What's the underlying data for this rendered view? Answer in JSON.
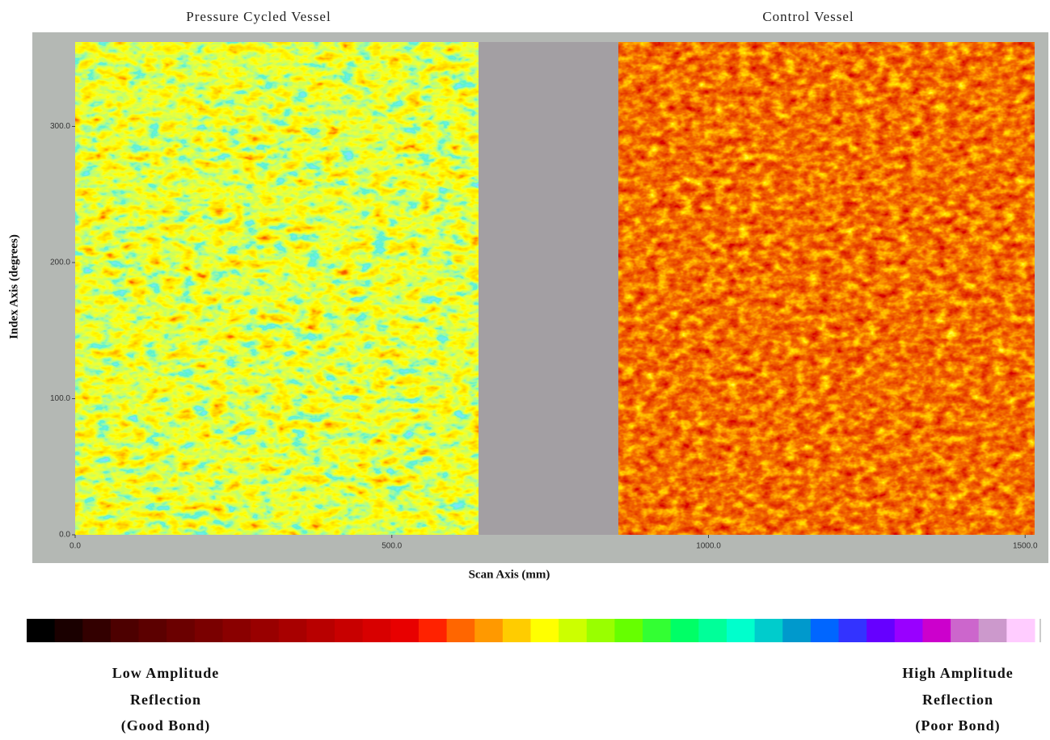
{
  "chart_data": {
    "type": "heatmap",
    "panels": [
      {
        "title": "Pressure Cycled Vessel"
      },
      {
        "title": "Control Vessel"
      }
    ],
    "x_label": "Scan Axis (mm)",
    "y_label": "Index Axis (degrees)",
    "xlim": [
      0,
      1515
    ],
    "ylim": [
      0,
      362
    ],
    "xticks": [
      {
        "value": 0,
        "label": "0.0"
      },
      {
        "value": 500,
        "label": "500.0"
      },
      {
        "value": 1000,
        "label": "1000.0"
      },
      {
        "value": 1500,
        "label": "1500.0"
      }
    ],
    "yticks": [
      {
        "value": 0,
        "label": "0.0"
      },
      {
        "value": 100,
        "label": "100.0"
      },
      {
        "value": 200,
        "label": "200.0"
      },
      {
        "value": 300,
        "label": "300.0"
      }
    ],
    "colorscale": [
      "#000000",
      "#1a0000",
      "#330000",
      "#4d0000",
      "#5c0000",
      "#6b0000",
      "#7a0000",
      "#8a0000",
      "#990000",
      "#a80000",
      "#b80000",
      "#c80000",
      "#d80000",
      "#e80000",
      "#ff2200",
      "#ff6600",
      "#ff9900",
      "#ffcc00",
      "#ffff00",
      "#ccff00",
      "#99ff00",
      "#66ff00",
      "#33ff33",
      "#00ff66",
      "#00ff99",
      "#00ffcc",
      "#00cccc",
      "#0099cc",
      "#0066ff",
      "#3333ff",
      "#6600ff",
      "#9900ff",
      "#cc00cc",
      "#cc66cc",
      "#cc99cc",
      "#ffccff"
    ],
    "colorbar_low": [
      "Low Amplitude",
      "Reflection",
      "(Good Bond)"
    ],
    "colorbar_high": [
      "High Amplitude",
      "Reflection",
      "(Poor Bond)"
    ]
  }
}
